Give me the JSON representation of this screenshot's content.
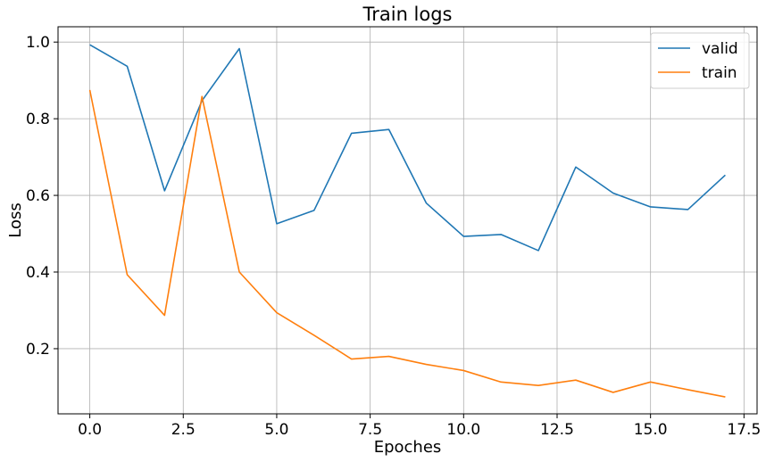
{
  "chart_data": {
    "type": "line",
    "title": "Train logs",
    "xlabel": "Epoches",
    "ylabel": "Loss",
    "xlim": [
      -0.85,
      17.85
    ],
    "ylim": [
      0.03,
      1.04
    ],
    "xticks": [
      0.0,
      2.5,
      5.0,
      7.5,
      10.0,
      12.5,
      15.0,
      17.5
    ],
    "xtick_labels": [
      "0.0",
      "2.5",
      "5.0",
      "7.5",
      "10.0",
      "12.5",
      "15.0",
      "17.5"
    ],
    "yticks": [
      0.2,
      0.4,
      0.6,
      0.8,
      1.0
    ],
    "ytick_labels": [
      "0.2",
      "0.4",
      "0.6",
      "0.8",
      "1.0"
    ],
    "grid": true,
    "legend_position": "top-right",
    "x": [
      0,
      1,
      2,
      3,
      4,
      5,
      6,
      7,
      8,
      9,
      10,
      11,
      12,
      13,
      14,
      15,
      16,
      17
    ],
    "series": [
      {
        "name": "valid",
        "color": "#1f77b4",
        "values": [
          0.993,
          0.937,
          0.612,
          0.847,
          0.983,
          0.526,
          0.561,
          0.762,
          0.772,
          0.58,
          0.493,
          0.498,
          0.456,
          0.674,
          0.606,
          0.57,
          0.563,
          0.653
        ]
      },
      {
        "name": "train",
        "color": "#ff7f0e",
        "values": [
          0.875,
          0.393,
          0.287,
          0.858,
          0.4,
          0.294,
          0.235,
          0.173,
          0.18,
          0.159,
          0.143,
          0.113,
          0.104,
          0.118,
          0.086,
          0.113,
          0.093,
          0.074
        ]
      }
    ]
  }
}
